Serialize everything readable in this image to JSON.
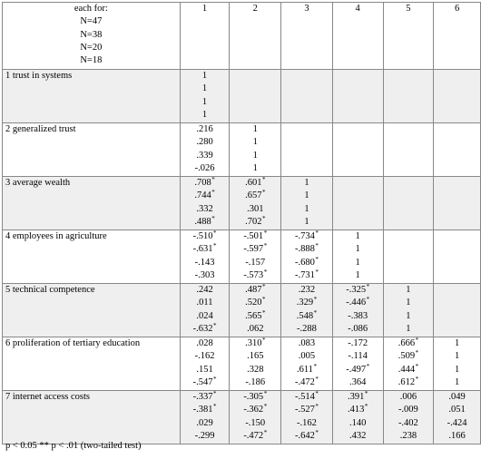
{
  "header": {
    "label_lines": [
      "each for:",
      "N=47",
      "N=38",
      "N=20",
      "N=18"
    ],
    "columns": [
      "1",
      "2",
      "3",
      "4",
      "5",
      "6"
    ]
  },
  "rows": [
    {
      "label": "1 trust in systems",
      "cells": [
        [
          "1",
          "1",
          "1",
          "1"
        ],
        [],
        [],
        [],
        [],
        []
      ]
    },
    {
      "label": "2 generalized trust",
      "cells": [
        [
          ".216",
          ".280",
          ".339",
          "-.026"
        ],
        [
          "1",
          "1",
          "1",
          "1"
        ],
        [],
        [],
        [],
        []
      ]
    },
    {
      "label": "3 average wealth",
      "cells": [
        [
          ".708*",
          ".744*",
          ".332",
          ".488*"
        ],
        [
          ".601*",
          ".657*",
          ".301",
          ".702*"
        ],
        [
          "1",
          "1",
          "1",
          "1"
        ],
        [],
        [],
        []
      ]
    },
    {
      "label": "4 employees in agriculture",
      "cells": [
        [
          "-.510*",
          "-.631*",
          "-.143",
          "-.303"
        ],
        [
          "-.501*",
          "-.597*",
          "-.157",
          "-.573*"
        ],
        [
          "-.734*",
          "-.888*",
          "-.680*",
          "-.731*"
        ],
        [
          "1",
          "1",
          "1",
          "1"
        ],
        [],
        []
      ]
    },
    {
      "label": "5 technical competence",
      "cells": [
        [
          ".242",
          ".011",
          ".024",
          "-.632*"
        ],
        [
          ".487*",
          ".520*",
          ".565*",
          ".062"
        ],
        [
          ".232",
          ".329*",
          ".548*",
          "-.288"
        ],
        [
          "-.325*",
          "-.446*",
          "-.383",
          "-.086"
        ],
        [
          "1",
          "1",
          "1",
          "1"
        ],
        []
      ]
    },
    {
      "label": "6 proliferation of tertiary education",
      "cells": [
        [
          ".028",
          "-.162",
          ".151",
          "-.547*"
        ],
        [
          ".310*",
          ".165",
          ".328",
          "-.186"
        ],
        [
          ".083",
          ".005",
          ".611*",
          "-.472*"
        ],
        [
          "-.172",
          "-.114",
          "-.497*",
          ".364"
        ],
        [
          ".666*",
          ".509*",
          ".444*",
          ".612*"
        ],
        [
          "1",
          "1",
          "1",
          "1"
        ]
      ]
    },
    {
      "label": "7 internet access costs",
      "cells": [
        [
          "-.337*",
          "-.381*",
          ".029",
          "-.299"
        ],
        [
          "-.305*",
          "-.362*",
          "-.150",
          "-.472*"
        ],
        [
          "-.514*",
          "-.527*",
          "-.162",
          "-.642*"
        ],
        [
          ".391*",
          ".413*",
          ".140",
          ".432"
        ],
        [
          ".006",
          "-.009",
          "-.402",
          ".238"
        ],
        [
          ".049",
          ".051",
          "-.424",
          ".166"
        ]
      ]
    }
  ],
  "footnote": "p < 0.05  ** p < .01 (two-tailed test)"
}
